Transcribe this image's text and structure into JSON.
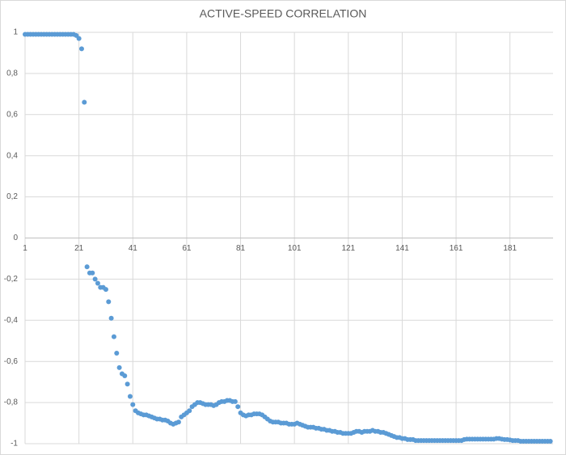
{
  "chart_data": {
    "type": "scatter",
    "title": "ACTIVE-SPEED CORRELATION",
    "color": "#5b9bd5",
    "grid": true,
    "xlim": [
      1,
      197
    ],
    "ylim": [
      -1,
      1
    ],
    "xticks": [
      1,
      21,
      41,
      61,
      81,
      101,
      121,
      141,
      161,
      181
    ],
    "yticks": [
      1,
      {
        "value": 0.8,
        "label": "0,8"
      },
      {
        "value": 0.6,
        "label": "0,6"
      },
      {
        "value": 0.4,
        "label": "0,4"
      },
      {
        "value": 0.2,
        "label": "0,2"
      },
      0,
      {
        "value": -0.2,
        "label": "-0,2"
      },
      {
        "value": -0.4,
        "label": "-0,4"
      },
      {
        "value": -0.6,
        "label": "-0,6"
      },
      {
        "value": -0.8,
        "label": "-0,8"
      },
      -1
    ],
    "x": [
      1,
      2,
      3,
      4,
      5,
      6,
      7,
      8,
      9,
      10,
      11,
      12,
      13,
      14,
      15,
      16,
      17,
      18,
      19,
      20,
      21,
      22,
      23,
      24,
      25,
      26,
      27,
      28,
      29,
      30,
      31,
      32,
      33,
      34,
      35,
      36,
      37,
      38,
      39,
      40,
      41,
      42,
      43,
      44,
      45,
      46,
      47,
      48,
      49,
      50,
      51,
      52,
      53,
      54,
      55,
      56,
      57,
      58,
      59,
      60,
      61,
      62,
      63,
      64,
      65,
      66,
      67,
      68,
      69,
      70,
      71,
      72,
      73,
      74,
      75,
      76,
      77,
      78,
      79,
      80,
      81,
      82,
      83,
      84,
      85,
      86,
      87,
      88,
      89,
      90,
      91,
      92,
      93,
      94,
      95,
      96,
      97,
      98,
      99,
      100,
      101,
      102,
      103,
      104,
      105,
      106,
      107,
      108,
      109,
      110,
      111,
      112,
      113,
      114,
      115,
      116,
      117,
      118,
      119,
      120,
      121,
      122,
      123,
      124,
      125,
      126,
      127,
      128,
      129,
      130,
      131,
      132,
      133,
      134,
      135,
      136,
      137,
      138,
      139,
      140,
      141,
      142,
      143,
      144,
      145,
      146,
      147,
      148,
      149,
      150,
      151,
      152,
      153,
      154,
      155,
      156,
      157,
      158,
      159,
      160,
      161,
      162,
      163,
      164,
      165,
      166,
      167,
      168,
      169,
      170,
      171,
      172,
      173,
      174,
      175,
      176,
      177,
      178,
      179,
      180,
      181,
      182,
      183,
      184,
      185,
      186,
      187,
      188,
      189,
      190,
      191,
      192,
      193,
      194,
      195,
      196
    ],
    "values": [
      0.99,
      0.99,
      0.99,
      0.99,
      0.99,
      0.99,
      0.99,
      0.99,
      0.99,
      0.99,
      0.99,
      0.99,
      0.99,
      0.99,
      0.99,
      0.99,
      0.99,
      0.99,
      0.99,
      0.985,
      0.97,
      0.92,
      0.66,
      -0.14,
      -0.17,
      -0.17,
      -0.2,
      -0.22,
      -0.24,
      -0.24,
      -0.25,
      -0.31,
      -0.39,
      -0.48,
      -0.56,
      -0.63,
      -0.66,
      -0.67,
      -0.71,
      -0.77,
      -0.81,
      -0.84,
      -0.85,
      -0.855,
      -0.86,
      -0.86,
      -0.865,
      -0.87,
      -0.875,
      -0.88,
      -0.88,
      -0.885,
      -0.885,
      -0.89,
      -0.9,
      -0.905,
      -0.9,
      -0.895,
      -0.87,
      -0.86,
      -0.85,
      -0.84,
      -0.82,
      -0.81,
      -0.8,
      -0.8,
      -0.805,
      -0.81,
      -0.81,
      -0.81,
      -0.815,
      -0.81,
      -0.8,
      -0.795,
      -0.795,
      -0.79,
      -0.79,
      -0.795,
      -0.795,
      -0.82,
      -0.85,
      -0.86,
      -0.865,
      -0.86,
      -0.86,
      -0.855,
      -0.855,
      -0.855,
      -0.86,
      -0.87,
      -0.88,
      -0.89,
      -0.895,
      -0.895,
      -0.895,
      -0.9,
      -0.9,
      -0.9,
      -0.905,
      -0.905,
      -0.905,
      -0.9,
      -0.905,
      -0.91,
      -0.915,
      -0.92,
      -0.92,
      -0.92,
      -0.925,
      -0.925,
      -0.93,
      -0.93,
      -0.935,
      -0.935,
      -0.94,
      -0.94,
      -0.945,
      -0.945,
      -0.95,
      -0.95,
      -0.95,
      -0.95,
      -0.945,
      -0.94,
      -0.94,
      -0.945,
      -0.94,
      -0.94,
      -0.94,
      -0.935,
      -0.94,
      -0.94,
      -0.945,
      -0.945,
      -0.95,
      -0.955,
      -0.96,
      -0.965,
      -0.97,
      -0.97,
      -0.975,
      -0.975,
      -0.98,
      -0.98,
      -0.98,
      -0.985,
      -0.985,
      -0.985,
      -0.985,
      -0.985,
      -0.985,
      -0.985,
      -0.985,
      -0.985,
      -0.985,
      -0.985,
      -0.985,
      -0.985,
      -0.985,
      -0.985,
      -0.985,
      -0.985,
      -0.985,
      -0.98,
      -0.978,
      -0.978,
      -0.978,
      -0.978,
      -0.978,
      -0.978,
      -0.978,
      -0.978,
      -0.978,
      -0.978,
      -0.978,
      -0.975,
      -0.975,
      -0.978,
      -0.98,
      -0.98,
      -0.982,
      -0.985,
      -0.985,
      -0.985,
      -0.988,
      -0.988,
      -0.988,
      -0.988,
      -0.988,
      -0.988,
      -0.988,
      -0.988,
      -0.988,
      -0.988,
      -0.988,
      -0.988
    ]
  }
}
